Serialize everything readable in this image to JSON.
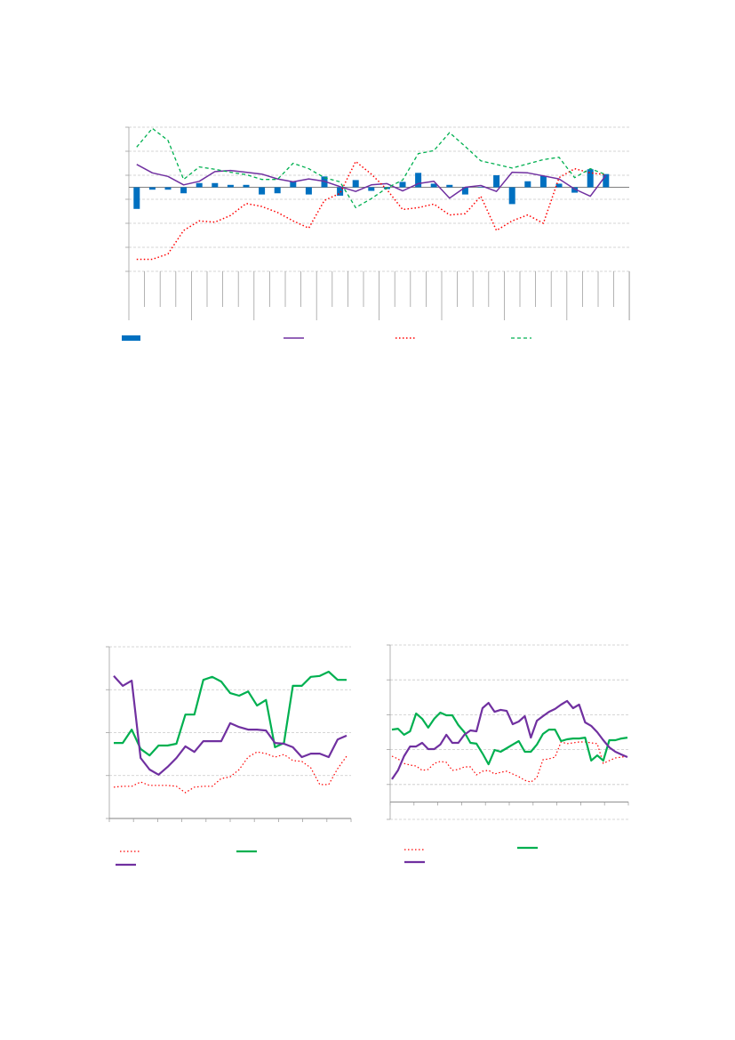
{
  "chart_data": [
    {
      "type": "bar",
      "grid": true,
      "categories": [
        null,
        null,
        null,
        null,
        null,
        null,
        null,
        null,
        null,
        null,
        null,
        null,
        null,
        null,
        null,
        null,
        null,
        null,
        null,
        null,
        null,
        null,
        null,
        null,
        null,
        null,
        null,
        null,
        null,
        null,
        null
      ],
      "ylim": [
        -7,
        5
      ],
      "yticks": [
        -7,
        -5,
        -3,
        -1,
        1,
        3,
        5
      ],
      "series": [
        {
          "kind": "bar",
          "color": "#0070c0",
          "values": [
            -1.8,
            -0.2,
            -0.2,
            -0.5,
            0.35,
            0.35,
            0.2,
            0.2,
            -0.6,
            -0.5,
            0.45,
            -0.6,
            0.9,
            -0.7,
            0.6,
            -0.3,
            -0.15,
            0.45,
            1.2,
            0.3,
            0.2,
            -0.6,
            0,
            1.0,
            -1.4,
            0.5,
            0.95,
            0.3,
            -0.45,
            1.5,
            1.1
          ]
        },
        {
          "kind": "line",
          "dash": "solid",
          "color": "#7030a0",
          "values": [
            1.9,
            1.2,
            0.9,
            0.2,
            0.5,
            1.3,
            1.4,
            1.25,
            1.1,
            0.7,
            0.45,
            0.7,
            0.5,
            0.05,
            -0.35,
            0.2,
            0.3,
            -0.3,
            0.3,
            0.5,
            -0.9,
            0,
            0.15,
            -0.35,
            1.25,
            1.2,
            0.95,
            0.7,
            -0.15,
            -0.75,
            1.0
          ]
        },
        {
          "kind": "line",
          "dash": "dotted",
          "color": "#ff0000",
          "values": [
            -6.0,
            -6.0,
            -5.55,
            -3.6,
            -2.8,
            -2.9,
            -2.35,
            -1.35,
            -1.6,
            -2.1,
            -2.8,
            -3.4,
            -1.1,
            -0.5,
            2.15,
            1.1,
            -0.2,
            -1.85,
            -1.7,
            -1.4,
            -2.3,
            -2.2,
            -0.75,
            -3.6,
            -2.8,
            -2.3,
            -3.0,
            0.8,
            1.55,
            1.2,
            1.05
          ]
        },
        {
          "kind": "line",
          "dash": "dashed",
          "color": "#00b050",
          "values": [
            3.35,
            4.9,
            3.9,
            0.65,
            1.7,
            1.5,
            1.25,
            1.05,
            0.65,
            0.65,
            2.0,
            1.55,
            0.8,
            0.45,
            -1.7,
            -0.95,
            -0.05,
            0.6,
            2.8,
            3.05,
            4.55,
            3.4,
            2.2,
            1.9,
            1.6,
            1.95,
            2.3,
            2.5,
            0.8,
            1.55,
            1.05
          ]
        }
      ]
    },
    {
      "type": "line",
      "grid": true,
      "categories": [
        null,
        null,
        null,
        null,
        null,
        null,
        null,
        null,
        null,
        null,
        null,
        null,
        null,
        null,
        null,
        null,
        null,
        null,
        null,
        null,
        null,
        null,
        null,
        null,
        null,
        null,
        null
      ],
      "ylim": [
        0,
        4
      ],
      "yticks": [
        0,
        1,
        2,
        3,
        4
      ],
      "series": [
        {
          "dash": "dotted",
          "color": "#ff0000",
          "values": [
            0.73,
            0.75,
            0.75,
            0.85,
            0.77,
            0.77,
            0.77,
            0.75,
            0.6,
            0.73,
            0.75,
            0.75,
            0.93,
            0.97,
            1.14,
            1.43,
            1.55,
            1.51,
            1.43,
            1.49,
            1.35,
            1.33,
            1.18,
            0.79,
            0.79,
            1.16,
            1.45
          ]
        },
        {
          "dash": "solid",
          "color": "#00b050",
          "values": [
            1.76,
            1.76,
            2.07,
            1.62,
            1.47,
            1.7,
            1.7,
            1.74,
            2.42,
            2.42,
            3.23,
            3.3,
            3.19,
            2.92,
            2.86,
            2.96,
            2.63,
            2.76,
            1.66,
            1.76,
            3.09,
            3.09,
            3.3,
            3.32,
            3.42,
            3.23,
            3.23
          ]
        },
        {
          "dash": "solid",
          "color": "#7030a0",
          "values": [
            3.32,
            3.09,
            3.21,
            1.41,
            1.14,
            1.02,
            1.2,
            1.41,
            1.68,
            1.55,
            1.8,
            1.8,
            1.8,
            2.22,
            2.13,
            2.07,
            2.07,
            2.05,
            1.76,
            1.74,
            1.66,
            1.43,
            1.51,
            1.51,
            1.43,
            1.84,
            1.93
          ]
        }
      ]
    },
    {
      "type": "line",
      "grid": true,
      "categories": [
        null,
        null,
        null,
        null,
        null,
        null,
        null,
        null,
        null,
        null,
        null,
        null,
        null,
        null,
        null,
        null,
        null,
        null,
        null,
        null,
        null,
        null,
        null,
        null,
        null,
        null,
        null,
        null,
        null,
        null,
        null,
        null,
        null,
        null,
        null,
        null,
        null,
        null,
        null,
        null
      ],
      "ylim": [
        -1,
        9
      ],
      "yticks": [
        -1,
        1,
        3,
        5,
        7,
        9
      ],
      "series": [
        {
          "dash": "dotted",
          "color": "#ff0000",
          "values": [
            2.62,
            2.47,
            2.21,
            2.11,
            2.06,
            1.81,
            1.86,
            2.21,
            2.32,
            2.27,
            1.81,
            1.86,
            2.01,
            2.01,
            1.55,
            1.76,
            1.81,
            1.6,
            1.7,
            1.76,
            1.6,
            1.45,
            1.24,
            1.14,
            1.4,
            2.42,
            2.47,
            2.57,
            3.44,
            3.34,
            3.39,
            3.44,
            3.44,
            3.39,
            3.34,
            2.21,
            2.37,
            2.52,
            2.57,
            2.62
          ]
        },
        {
          "dash": "solid",
          "color": "#00b050",
          "values": [
            4.15,
            4.2,
            3.85,
            4.05,
            5.07,
            4.77,
            4.26,
            4.77,
            5.12,
            4.97,
            4.97,
            4.41,
            4.0,
            3.39,
            3.34,
            2.78,
            2.16,
            2.98,
            2.88,
            3.08,
            3.29,
            3.49,
            2.88,
            2.88,
            3.29,
            3.9,
            4.15,
            4.15,
            3.49,
            3.59,
            3.64,
            3.64,
            3.69,
            2.37,
            2.67,
            2.37,
            3.54,
            3.54,
            3.64,
            3.69
          ]
        },
        {
          "dash": "solid",
          "color": "#7030a0",
          "values": [
            1.3,
            1.81,
            2.62,
            3.18,
            3.18,
            3.39,
            3.03,
            3.03,
            3.29,
            3.85,
            3.39,
            3.39,
            3.85,
            4.1,
            4.05,
            5.38,
            5.68,
            5.17,
            5.28,
            5.22,
            4.46,
            4.61,
            4.92,
            3.69,
            4.66,
            4.92,
            5.17,
            5.33,
            5.58,
            5.79,
            5.38,
            5.58,
            4.56,
            4.36,
            4.0,
            3.54,
            3.13,
            2.88,
            2.72,
            2.57
          ]
        }
      ]
    }
  ]
}
